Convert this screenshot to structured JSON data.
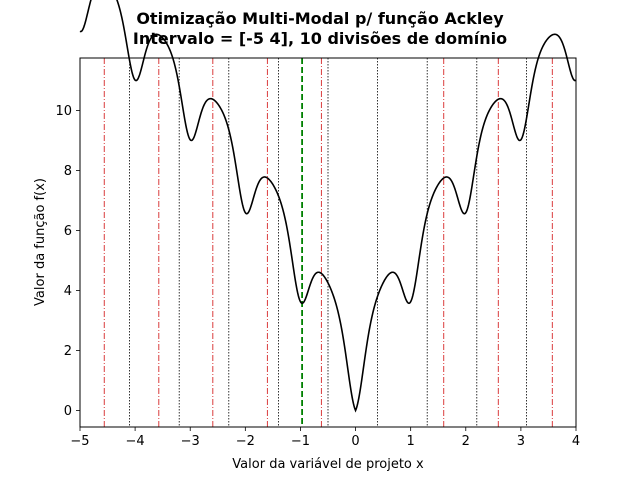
{
  "chart_data": {
    "type": "line",
    "title_line1": "Otimização Multi-Modal p/ função Ackley",
    "title_line2": "Intervalo = [-5  4], 10 divisões de domínio",
    "xlabel": "Valor da variável de projeto x",
    "ylabel": "Valor da função f(x)",
    "xlim": [
      -5,
      4
    ],
    "ylim": [
      -0.55,
      11.75
    ],
    "x_ticks": [
      -5,
      -4,
      -3,
      -2,
      -1,
      0,
      1,
      2,
      3,
      4
    ],
    "x_tick_labels": [
      "−5",
      "−4",
      "−3",
      "−2",
      "−1",
      "0",
      "1",
      "2",
      "3",
      "4"
    ],
    "y_ticks": [
      0,
      2,
      4,
      6,
      8,
      10
    ],
    "y_tick_labels": [
      "0",
      "2",
      "4",
      "6",
      "8",
      "10"
    ],
    "series": [
      {
        "function": "ackley",
        "color": "#000000",
        "x_start": -5,
        "x_end": 4,
        "samples": 901
      }
    ],
    "domain_division_lines": {
      "style": "dotted",
      "color": "#000000",
      "x": [
        -4.1,
        -3.2,
        -2.3,
        -1.4,
        -0.5,
        0.4,
        1.3,
        2.2,
        3.1
      ]
    },
    "local_optima_lines": {
      "style": "dash-dot",
      "color": "#d62728",
      "x": [
        -4.56,
        -3.57,
        -2.59,
        -1.6,
        -0.62,
        1.6,
        2.59,
        3.57
      ]
    },
    "selected_line": {
      "style": "dashed",
      "color": "#008000",
      "x": -0.97
    }
  }
}
